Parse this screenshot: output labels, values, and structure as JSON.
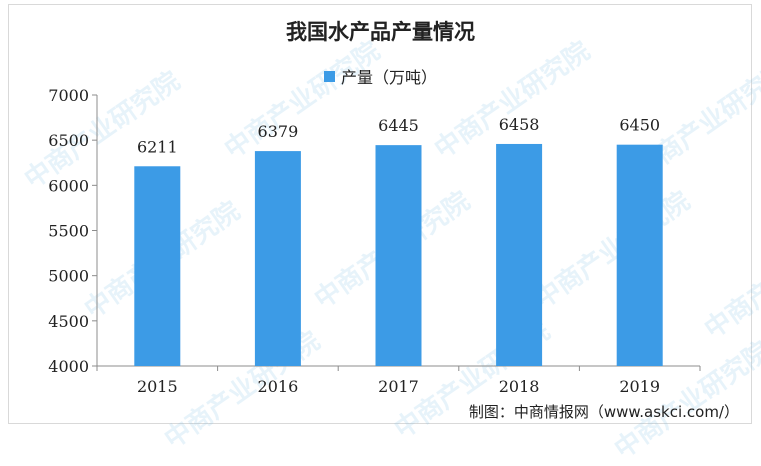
{
  "chart_data": {
    "type": "bar",
    "title": "我国水产品产量情况",
    "xlabel": "",
    "ylabel": "",
    "categories": [
      "2015",
      "2016",
      "2017",
      "2018",
      "2019"
    ],
    "series": [
      {
        "name": "产量（万吨）",
        "values": [
          6211,
          6379,
          6445,
          6458,
          6450
        ]
      }
    ],
    "ylim": [
      4000,
      7000
    ],
    "yticks": [
      4000,
      4500,
      5000,
      5500,
      6000,
      6500,
      7000
    ],
    "grid": false,
    "legend": "top-center",
    "bar_color": "#3c9be6"
  },
  "source": "制图：中商情报网（www.askci.com/）",
  "watermark": "中商产业研究院"
}
